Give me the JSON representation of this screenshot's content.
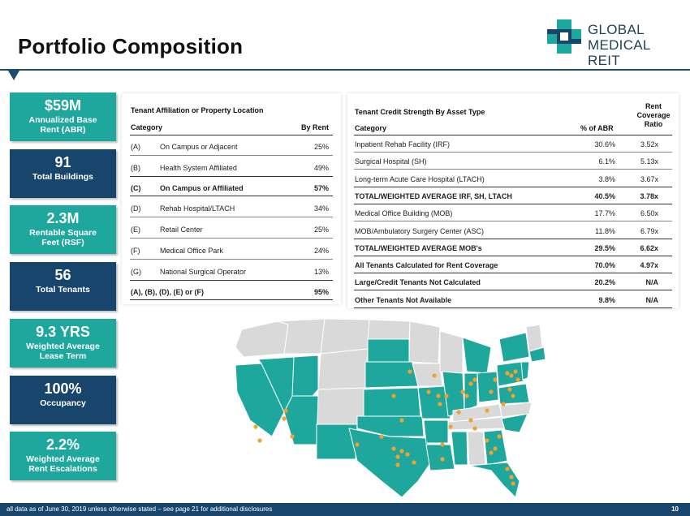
{
  "header": {
    "title": "Portfolio Composition",
    "logo_line1": "GLOBAL",
    "logo_line2": "MEDICAL REIT"
  },
  "stats": [
    {
      "value": "$59M",
      "label1": "Annualized Base",
      "label2": "Rent (ABR)"
    },
    {
      "value": "91",
      "label1": "Total Buildings",
      "label2": ""
    },
    {
      "value": "2.3M",
      "label1": "Rentable Square",
      "label2": "Feet (RSF)"
    },
    {
      "value": "56",
      "label1": "Total Tenants",
      "label2": ""
    },
    {
      "value": "9.3 YRS",
      "label1": "Weighted Average",
      "label2": "Lease Term"
    },
    {
      "value": "100%",
      "label1": "Occupancy",
      "label2": ""
    },
    {
      "value": "2.2%",
      "label1": "Weighted Average",
      "label2": "Rent Escalations"
    }
  ],
  "table1": {
    "title": "Tenant Affiliation or Property Location",
    "col_category": "Category",
    "col_rent": "By Rent",
    "rows": [
      {
        "code": "(A)",
        "name": "On Campus or Adjacent",
        "value": "25%"
      },
      {
        "code": "(B)",
        "name": "Health System Affiliated",
        "value": "49%"
      },
      {
        "code": "(C)",
        "name": "On Campus or Affiliated",
        "value": "57%"
      },
      {
        "code": "(D)",
        "name": "Rehab Hospital/LTACH",
        "value": "34%"
      },
      {
        "code": "(E)",
        "name": "Retail Center",
        "value": "25%"
      },
      {
        "code": "(F)",
        "name": "Medical Office Park",
        "value": "24%"
      },
      {
        "code": "(G)",
        "name": "National Surgical Operator",
        "value": "13%"
      }
    ],
    "total_label": "(A), (B), (D), (E) or (F)",
    "total_value": "95%"
  },
  "table2": {
    "title": "Tenant Credit Strength By Asset Type",
    "col_category": "Category",
    "col_abr": "% of ABR",
    "col_rent1": "Rent",
    "col_rent2": "Coverage",
    "col_rent3": "Ratio",
    "rows": [
      {
        "name": "Inpatient Rehab Facility (IRF)",
        "abr": "30.6%",
        "ratio": "3.52x"
      },
      {
        "name": "Surgical Hospital (SH)",
        "abr": "6.1%",
        "ratio": "5.13x"
      },
      {
        "name": "Long-term Acute Care Hospital (LTACH)",
        "abr": "3.8%",
        "ratio": "3.67x"
      },
      {
        "name": "TOTAL/WEIGHTED AVERAGE IRF, SH, LTACH",
        "abr": "40.5%",
        "ratio": "3.78x"
      },
      {
        "name": "Medical Office Building (MOB)",
        "abr": "17.7%",
        "ratio": "6.50x"
      },
      {
        "name": "MOB/Ambulatory Surgery Center (ASC)",
        "abr": "11.8%",
        "ratio": "6.79x"
      },
      {
        "name": "TOTAL/WEIGHTED AVERAGE MOB's",
        "abr": "29.5%",
        "ratio": "6.62x"
      },
      {
        "name": "All Tenants Calculated for Rent Coverage",
        "abr": "70.0%",
        "ratio": "4.97x"
      },
      {
        "name": "Large/Credit Tenants Not Calculated",
        "abr": "20.2%",
        "ratio": "N/A"
      },
      {
        "name": "Other Tenants Not Available",
        "abr": "9.8%",
        "ratio": "N/A"
      }
    ]
  },
  "footer": {
    "note": "all data as of June 30, 2019 unless otherwise stated – see page 21 for additional disclosures",
    "page": "10"
  },
  "colors": {
    "teal": "#1ea79c",
    "navy": "#17456b",
    "marker": "#f2a12e",
    "grey_state": "#d9d9d9"
  }
}
